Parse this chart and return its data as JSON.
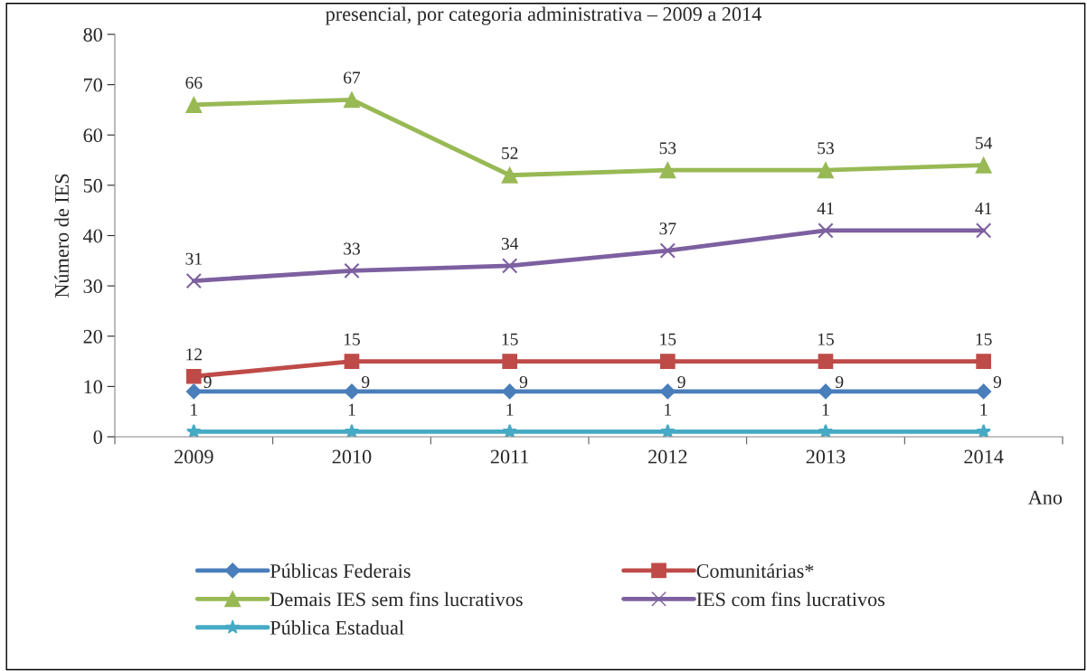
{
  "chart_data": {
    "type": "line",
    "title": "presencial, por categoria administrativa – 2009 a 2014",
    "xlabel": "Ano",
    "ylabel": "Número de IES",
    "categories": [
      "2009",
      "2010",
      "2011",
      "2012",
      "2013",
      "2014"
    ],
    "series": [
      {
        "name": "Públicas Federais",
        "color": "#4a7ebb",
        "marker": "diamond",
        "values": [
          9,
          9,
          9,
          9,
          9,
          9
        ]
      },
      {
        "name": "Comunitárias*",
        "color": "#be4b48",
        "marker": "square",
        "values": [
          12,
          15,
          15,
          15,
          15,
          15
        ]
      },
      {
        "name": "Demais IES sem fins lucrativos",
        "color": "#98b954",
        "marker": "triangle",
        "values": [
          66,
          67,
          52,
          53,
          53,
          54
        ]
      },
      {
        "name": "IES com fins lucrativos",
        "color": "#7d60a0",
        "marker": "cross",
        "values": [
          31,
          33,
          34,
          37,
          41,
          41
        ]
      },
      {
        "name": "Pública Estadual",
        "color": "#46aac5",
        "marker": "star",
        "values": [
          1,
          1,
          1,
          1,
          1,
          1
        ]
      }
    ],
    "ylim": [
      0,
      80
    ],
    "yticks": [
      0,
      10,
      20,
      30,
      40,
      50,
      60,
      70,
      80
    ],
    "data_labels": true,
    "legend": "bottom",
    "grid": false,
    "line_style": "solid"
  }
}
